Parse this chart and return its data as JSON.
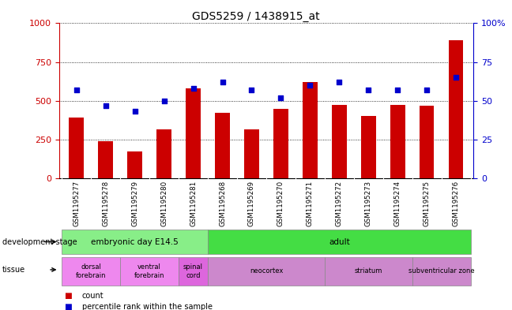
{
  "title": "GDS5259 / 1438915_at",
  "samples": [
    "GSM1195277",
    "GSM1195278",
    "GSM1195279",
    "GSM1195280",
    "GSM1195281",
    "GSM1195268",
    "GSM1195269",
    "GSM1195270",
    "GSM1195271",
    "GSM1195272",
    "GSM1195273",
    "GSM1195274",
    "GSM1195275",
    "GSM1195276"
  ],
  "counts": [
    390,
    240,
    175,
    315,
    580,
    420,
    315,
    450,
    620,
    475,
    400,
    475,
    470,
    890
  ],
  "percentiles": [
    57,
    47,
    43,
    50,
    58,
    62,
    57,
    52,
    60,
    62,
    57,
    57,
    57,
    65
  ],
  "ylim_left": [
    0,
    1000
  ],
  "ylim_right": [
    0,
    100
  ],
  "yticks_left": [
    0,
    250,
    500,
    750,
    1000
  ],
  "yticks_right": [
    0,
    25,
    50,
    75,
    100
  ],
  "bar_color": "#cc0000",
  "dot_color": "#0000cc",
  "development_stages": [
    {
      "label": "embryonic day E14.5",
      "start": 0,
      "end": 5,
      "color": "#88ee88"
    },
    {
      "label": "adult",
      "start": 5,
      "end": 14,
      "color": "#44dd44"
    }
  ],
  "tissues": [
    {
      "label": "dorsal\nforebrain",
      "start": 0,
      "end": 2,
      "color": "#ee88ee"
    },
    {
      "label": "ventral\nforebrain",
      "start": 2,
      "end": 4,
      "color": "#ee88ee"
    },
    {
      "label": "spinal\ncord",
      "start": 4,
      "end": 5,
      "color": "#dd66dd"
    },
    {
      "label": "neocortex",
      "start": 5,
      "end": 9,
      "color": "#cc88cc"
    },
    {
      "label": "striatum",
      "start": 9,
      "end": 12,
      "color": "#cc88cc"
    },
    {
      "label": "subventricular zone",
      "start": 12,
      "end": 14,
      "color": "#cc88cc"
    }
  ],
  "legend_count_label": "count",
  "legend_pct_label": "percentile rank within the sample",
  "bar_color_label": "#cc0000",
  "dot_color_label": "#0000cc",
  "left_axis_color": "#cc0000",
  "right_axis_color": "#0000cc",
  "xtick_bg_color": "#c8c8c8",
  "stage_label": "development stage",
  "tissue_label": "tissue"
}
